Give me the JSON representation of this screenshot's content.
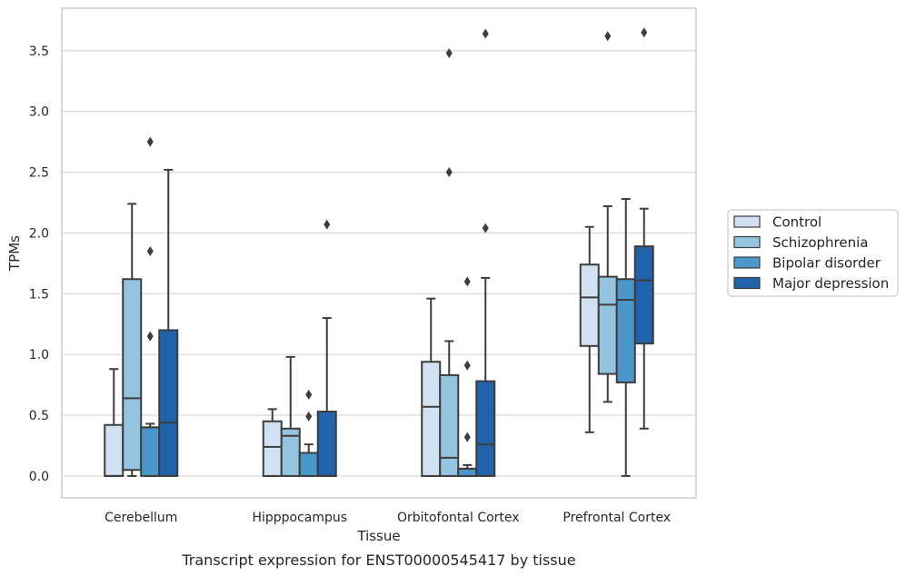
{
  "caption": "Transcript expression for ENST00000545417 by tissue",
  "colors": {
    "Control": "#d0e1f2",
    "Schizophrenia": "#94c4df",
    "Bipolar disorder": "#4a98c9",
    "Major depression": "#2163aa",
    "line": "#3d3d3d",
    "grid": "#d5d5d5",
    "frame": "#cccccc"
  },
  "chart_data": {
    "type": "box",
    "xlabel": "Tissue",
    "ylabel": "TPMs",
    "ylim": [
      -0.18,
      3.85
    ],
    "yticks": [
      "0.0",
      "0.5",
      "1.0",
      "1.5",
      "2.0",
      "2.5",
      "3.0",
      "3.5"
    ],
    "categories": [
      "Cerebellum",
      "Hipppocampus",
      "Orbitofontal Cortex",
      "Prefrontal Cortex"
    ],
    "grid": "horizontal",
    "legend_position": "right",
    "series": [
      {
        "name": "Control",
        "boxes": [
          {
            "q1": 0.0,
            "median": 0.0,
            "q3": 0.42,
            "whislo": 0.0,
            "whishi": 0.88,
            "fliers": []
          },
          {
            "q1": 0.0,
            "median": 0.24,
            "q3": 0.45,
            "whislo": 0.0,
            "whishi": 0.55,
            "fliers": []
          },
          {
            "q1": 0.0,
            "median": 0.57,
            "q3": 0.94,
            "whislo": 0.0,
            "whishi": 1.46,
            "fliers": []
          },
          {
            "q1": 1.07,
            "median": 1.47,
            "q3": 1.74,
            "whislo": 0.36,
            "whishi": 2.05,
            "fliers": []
          }
        ]
      },
      {
        "name": "Schizophrenia",
        "boxes": [
          {
            "q1": 0.05,
            "median": 0.64,
            "q3": 1.62,
            "whislo": 0.0,
            "whishi": 2.24,
            "fliers": []
          },
          {
            "q1": 0.0,
            "median": 0.33,
            "q3": 0.39,
            "whislo": 0.0,
            "whishi": 0.98,
            "fliers": []
          },
          {
            "q1": 0.0,
            "median": 0.15,
            "q3": 0.83,
            "whislo": 0.0,
            "whishi": 1.11,
            "fliers": [
              2.5,
              3.48
            ]
          },
          {
            "q1": 0.84,
            "median": 1.41,
            "q3": 1.64,
            "whislo": 0.61,
            "whishi": 2.22,
            "fliers": [
              3.62
            ]
          }
        ]
      },
      {
        "name": "Bipolar disorder",
        "boxes": [
          {
            "q1": 0.0,
            "median": 0.4,
            "q3": 0.4,
            "whislo": 0.0,
            "whishi": 0.43,
            "fliers": [
              1.15,
              1.85,
              2.75
            ]
          },
          {
            "q1": 0.0,
            "median": 0.19,
            "q3": 0.19,
            "whislo": 0.0,
            "whishi": 0.26,
            "fliers": [
              0.49,
              0.67
            ]
          },
          {
            "q1": 0.0,
            "median": 0.06,
            "q3": 0.06,
            "whislo": 0.0,
            "whishi": 0.09,
            "fliers": [
              0.32,
              0.91,
              1.6
            ]
          },
          {
            "q1": 0.77,
            "median": 1.45,
            "q3": 1.62,
            "whislo": 0.0,
            "whishi": 2.28,
            "fliers": []
          }
        ]
      },
      {
        "name": "Major depression",
        "boxes": [
          {
            "q1": 0.0,
            "median": 0.44,
            "q3": 1.2,
            "whislo": 0.0,
            "whishi": 2.52,
            "fliers": []
          },
          {
            "q1": 0.0,
            "median": 0.0,
            "q3": 0.53,
            "whislo": 0.0,
            "whishi": 1.3,
            "fliers": [
              2.07
            ]
          },
          {
            "q1": 0.0,
            "median": 0.26,
            "q3": 0.78,
            "whislo": 0.0,
            "whishi": 1.63,
            "fliers": [
              2.04,
              3.64
            ]
          },
          {
            "q1": 1.09,
            "median": 1.61,
            "q3": 1.89,
            "whislo": 0.39,
            "whishi": 2.2,
            "fliers": [
              3.65
            ]
          }
        ]
      }
    ]
  }
}
